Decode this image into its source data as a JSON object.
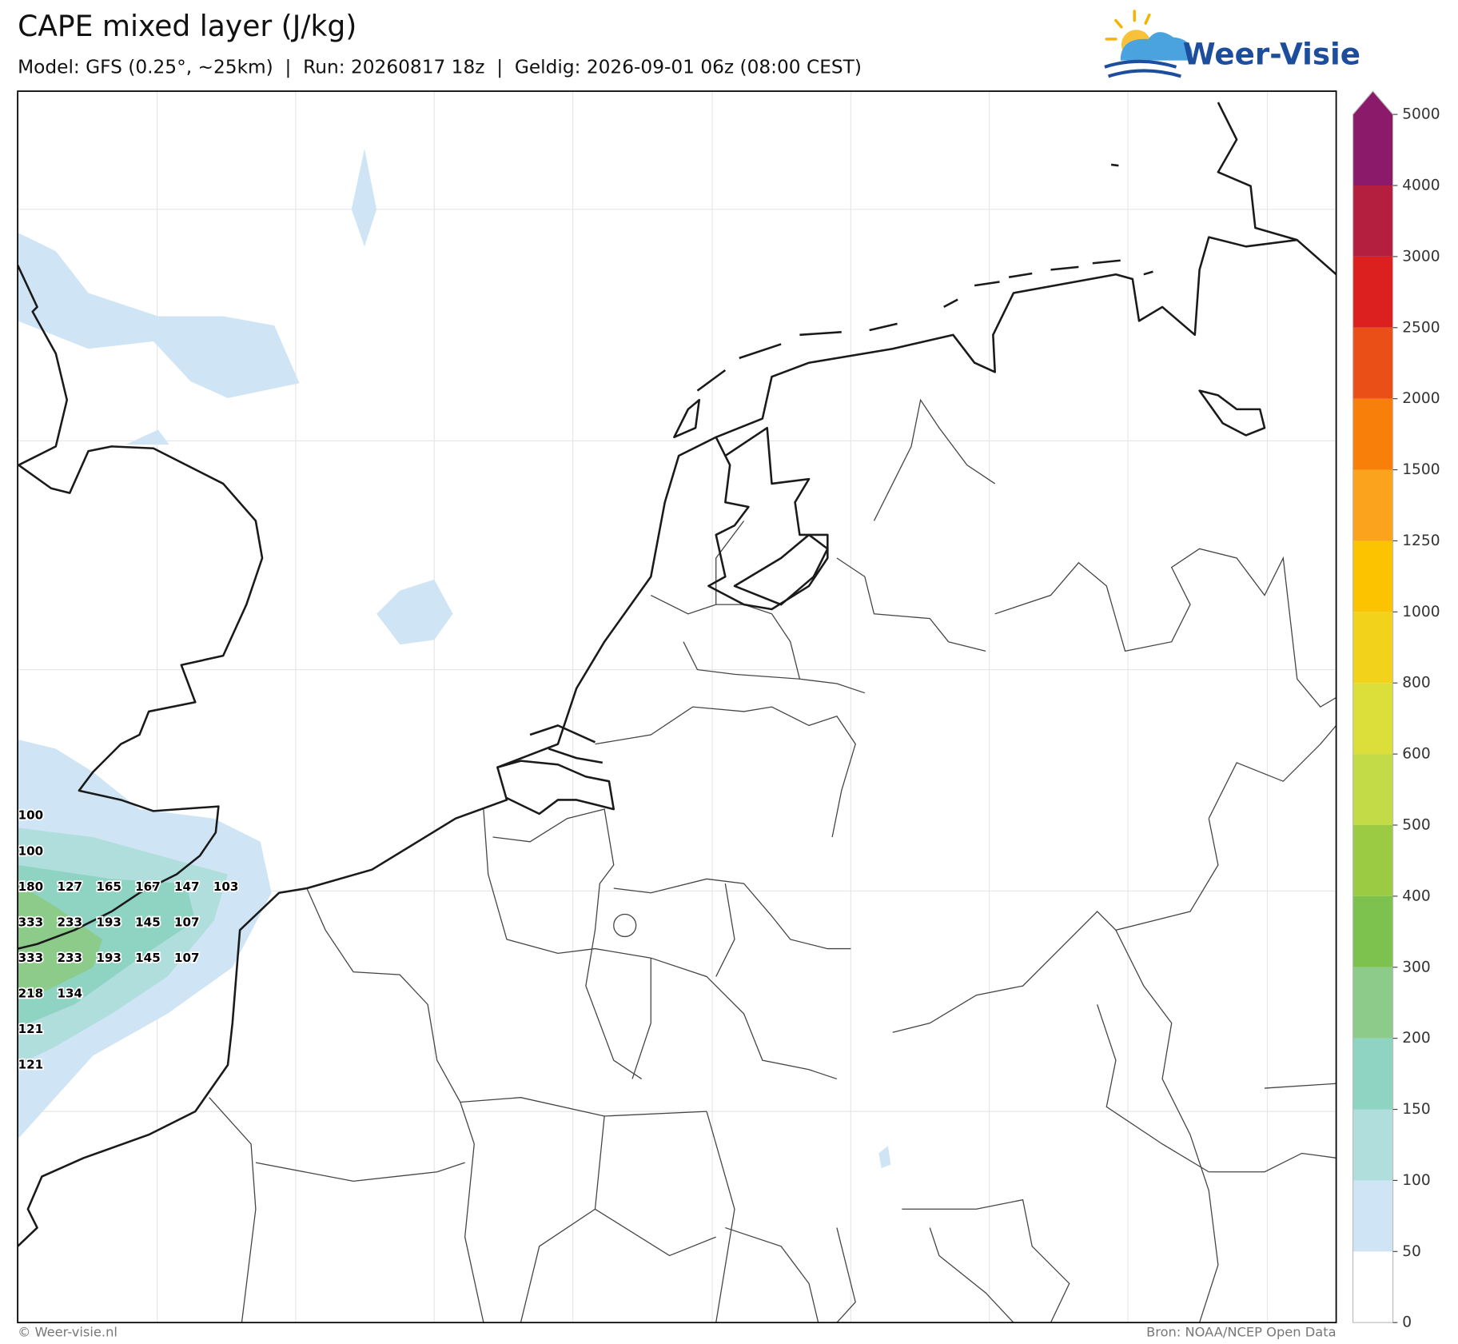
{
  "header": {
    "title": "CAPE mixed layer (J/kg)",
    "subtitle": "Model: GFS (0.25°, ~25km)  |  Run: 20260817 18z  |  Geldig: 2026-09-01 06z (08:00 CEST)"
  },
  "logo": {
    "text": "Weer-Visie"
  },
  "colorbar": {
    "ticks": [
      0,
      50,
      100,
      150,
      200,
      300,
      400,
      500,
      600,
      800,
      1000,
      1250,
      1500,
      2000,
      2500,
      3000,
      4000,
      5000
    ],
    "colors": [
      "#ffffff",
      "#cfe5f5",
      "#b0dedd",
      "#8fd3c3",
      "#8ccb8a",
      "#7dc24e",
      "#9acb42",
      "#c2db46",
      "#dcdf3a",
      "#f2d21a",
      "#fbc300",
      "#fba31d",
      "#f77f0a",
      "#e94f17",
      "#dc2020",
      "#b51f3f",
      "#8c1a6a"
    ]
  },
  "map": {
    "labels": [
      [
        100
      ],
      [
        100
      ],
      [
        180,
        127,
        165,
        167,
        147,
        103
      ],
      [
        333,
        233,
        193,
        145,
        107
      ],
      [
        333,
        233,
        193,
        145,
        107
      ],
      [
        218,
        134
      ],
      [
        121
      ],
      [
        121
      ]
    ]
  },
  "footer": {
    "left": "© Weer-visie.nl",
    "right": "Bron: NOAA/NCEP Open Data"
  }
}
